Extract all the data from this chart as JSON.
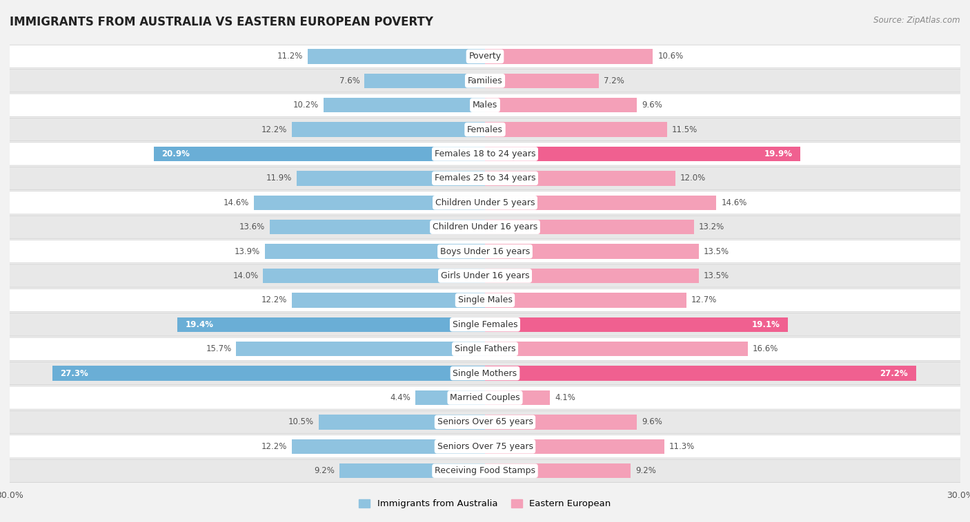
{
  "title": "IMMIGRANTS FROM AUSTRALIA VS EASTERN EUROPEAN POVERTY",
  "source": "Source: ZipAtlas.com",
  "categories": [
    "Poverty",
    "Families",
    "Males",
    "Females",
    "Females 18 to 24 years",
    "Females 25 to 34 years",
    "Children Under 5 years",
    "Children Under 16 years",
    "Boys Under 16 years",
    "Girls Under 16 years",
    "Single Males",
    "Single Females",
    "Single Fathers",
    "Single Mothers",
    "Married Couples",
    "Seniors Over 65 years",
    "Seniors Over 75 years",
    "Receiving Food Stamps"
  ],
  "left_values": [
    11.2,
    7.6,
    10.2,
    12.2,
    20.9,
    11.9,
    14.6,
    13.6,
    13.9,
    14.0,
    12.2,
    19.4,
    15.7,
    27.3,
    4.4,
    10.5,
    12.2,
    9.2
  ],
  "right_values": [
    10.6,
    7.2,
    9.6,
    11.5,
    19.9,
    12.0,
    14.6,
    13.2,
    13.5,
    13.5,
    12.7,
    19.1,
    16.6,
    27.2,
    4.1,
    9.6,
    11.3,
    9.2
  ],
  "left_color": "#8fc3e0",
  "right_color": "#f4a0b8",
  "highlight_left_color": "#6aaed6",
  "highlight_right_color": "#f06090",
  "highlight_rows": [
    4,
    11,
    13
  ],
  "background_color": "#f2f2f2",
  "row_bg_colors": [
    "#ffffff",
    "#e8e8e8"
  ],
  "xlim": 30.0,
  "legend_left": "Immigrants from Australia",
  "legend_right": "Eastern European",
  "bar_height": 0.6,
  "label_fontsize": 9,
  "value_fontsize": 8.5,
  "title_fontsize": 12
}
